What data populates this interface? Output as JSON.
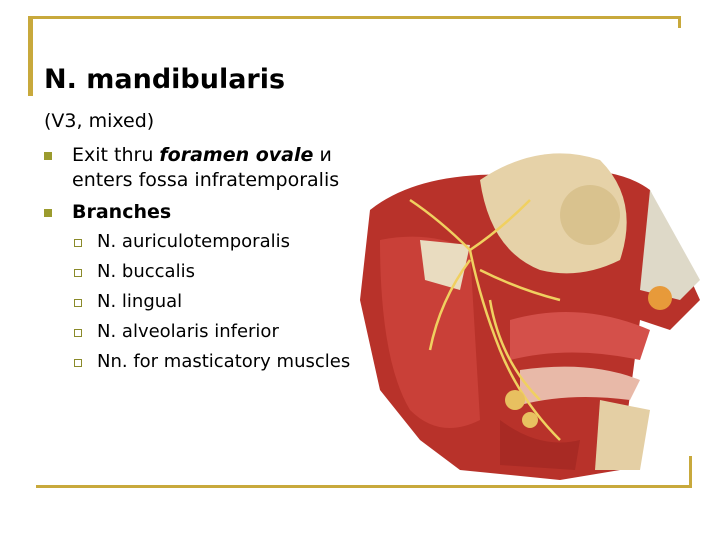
{
  "slide": {
    "title": "N. mandibularis",
    "intro": "(V3, mixed)",
    "bullets": [
      {
        "parts": [
          "Exit thru ",
          "foramen ovale",
          " и enters fossa infratemporalis"
        ]
      },
      {
        "text": "Branches",
        "subitems": [
          "N. auriculotemporalis",
          "N. buccalis",
          "N. lingual",
          "N. alveolaris inferior",
          "Nn. for masticatory muscles"
        ]
      }
    ]
  }
}
